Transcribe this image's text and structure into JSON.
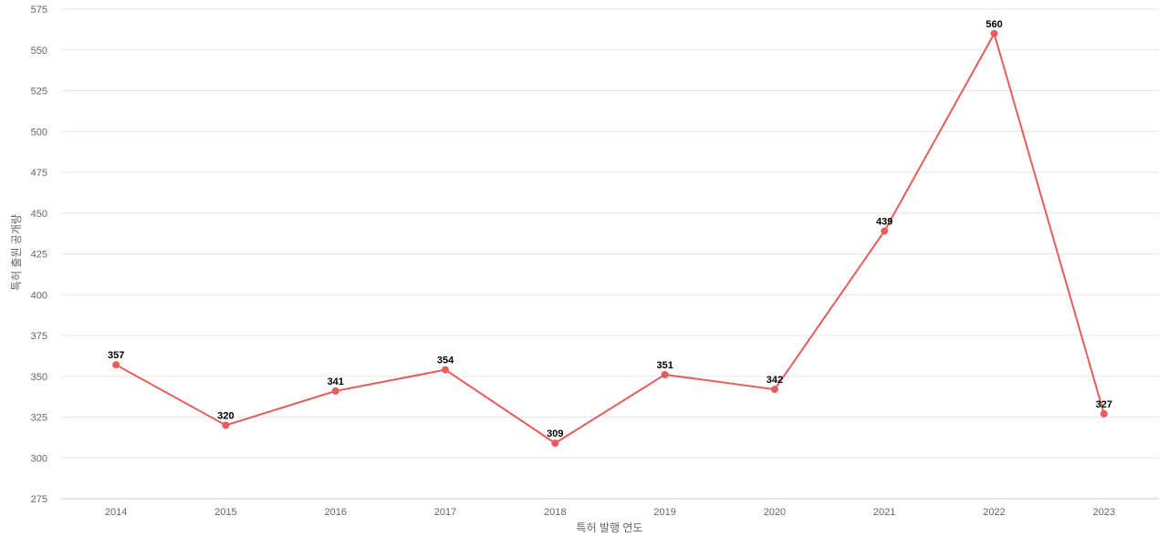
{
  "chart_data": {
    "type": "line",
    "title": "",
    "xlabel": "특허 발행 연도",
    "ylabel": "특허 출원 공개량",
    "categories": [
      "2014",
      "2015",
      "2016",
      "2017",
      "2018",
      "2019",
      "2020",
      "2021",
      "2022",
      "2023"
    ],
    "series": [
      {
        "values": [
          357,
          320,
          341,
          354,
          309,
          351,
          342,
          439,
          560,
          327
        ],
        "color": "#e85c5c"
      }
    ],
    "ylim": [
      275,
      575
    ],
    "yticks": [
      275,
      300,
      325,
      350,
      375,
      400,
      425,
      450,
      475,
      500,
      525,
      550,
      575
    ],
    "grid": true,
    "legend": "none",
    "data_labels": true
  }
}
